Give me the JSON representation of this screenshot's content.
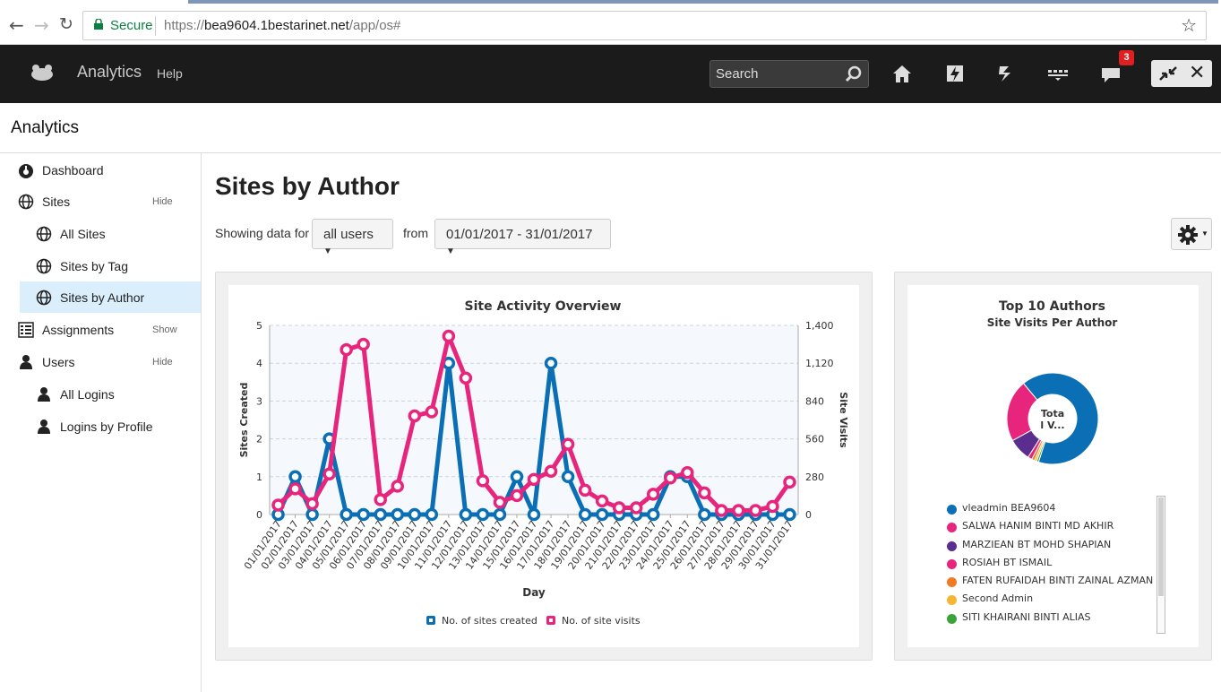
{
  "browser": {
    "secure_label": "Secure",
    "url_scheme": "https://",
    "url_host": "bea9604.1bestarinet.net",
    "url_path": "/app/os#"
  },
  "appbar": {
    "title": "Analytics",
    "help": "Help",
    "search_placeholder": "Search",
    "notification_count": "3"
  },
  "page": {
    "heading": "Analytics"
  },
  "sidebar": {
    "items": [
      {
        "label": "Dashboard",
        "icon": "dashboard-icon",
        "action": ""
      },
      {
        "label": "Sites",
        "icon": "globe-icon",
        "action": "Hide"
      },
      {
        "label": "All Sites",
        "icon": "globe-icon",
        "action": ""
      },
      {
        "label": "Sites by Tag",
        "icon": "globe-icon",
        "action": ""
      },
      {
        "label": "Sites by Author",
        "icon": "globe-icon",
        "action": ""
      },
      {
        "label": "Assignments",
        "icon": "list-icon",
        "action": "Show"
      },
      {
        "label": "Users",
        "icon": "user-icon",
        "action": "Hide"
      },
      {
        "label": "All Logins",
        "icon": "user-icon",
        "action": ""
      },
      {
        "label": "Logins by Profile",
        "icon": "user-icon",
        "action": ""
      }
    ]
  },
  "main": {
    "title": "Sites by Author",
    "showing_label": "Showing data for",
    "users_dropdown": "all users",
    "from_label": "from",
    "date_range": "01/01/2017 - 31/01/2017"
  },
  "colors": {
    "blue": "#0a6fb5",
    "pink": "#e8257c",
    "purple": "#5b2d8e",
    "orange": "#f07b22",
    "yellow": "#f5b731",
    "green": "#3aa43a"
  },
  "chart_data": [
    {
      "type": "line",
      "title": "Site Activity Overview",
      "xlabel": "Day",
      "ylabel": "Sites Created",
      "y2label": "Site Visits",
      "categories": [
        "01/01/2017",
        "02/01/2017",
        "03/01/2017",
        "04/01/2017",
        "05/01/2017",
        "06/01/2017",
        "07/01/2017",
        "08/01/2017",
        "09/01/2017",
        "10/01/2017",
        "11/01/2017",
        "12/01/2017",
        "13/01/2017",
        "14/01/2017",
        "15/01/2017",
        "16/01/2017",
        "17/01/2017",
        "18/01/2017",
        "19/01/2017",
        "20/01/2017",
        "21/01/2017",
        "22/01/2017",
        "23/01/2017",
        "24/01/2017",
        "25/01/2017",
        "26/01/2017",
        "27/01/2017",
        "28/01/2017",
        "29/01/2017",
        "30/01/2017",
        "31/01/2017"
      ],
      "ylim": [
        0,
        5
      ],
      "y2lim": [
        0,
        1400
      ],
      "yticks": [
        "0",
        "1",
        "2",
        "3",
        "4",
        "5"
      ],
      "y2ticks": [
        "0",
        "280",
        "560",
        "840",
        "1,120",
        "1,400"
      ],
      "series": [
        {
          "name": "No. of sites created",
          "axis": "left",
          "values": [
            0,
            1,
            0,
            2,
            0,
            0,
            0,
            0,
            0,
            0,
            4,
            0,
            0,
            0,
            1,
            0,
            4,
            1,
            0,
            0,
            0,
            0,
            0,
            1,
            1,
            0,
            0,
            0,
            0,
            0,
            0
          ]
        },
        {
          "name": "No. of site visits",
          "axis": "right",
          "values": [
            70,
            190,
            80,
            300,
            1220,
            1260,
            110,
            210,
            730,
            760,
            1320,
            1010,
            250,
            90,
            140,
            260,
            320,
            520,
            180,
            100,
            50,
            50,
            150,
            270,
            310,
            160,
            30,
            30,
            30,
            60,
            240
          ]
        }
      ],
      "grid": true,
      "legend": "bottom"
    },
    {
      "type": "pie",
      "title": "Top 10 Authors",
      "subtitle": "Site Visits Per Author",
      "center_label": "Tota l V...",
      "labels": [
        "vleadmin BEA9604",
        "SALWA HANIM BINTI MD AKHIR",
        "MARZIEAN BT MOHD SHAPIAN",
        "ROSIAH BT ISMAIL",
        "FATEN RUFAIDAH BINTI ZAINAL AZMAN",
        "Second Admin",
        "SITI KHAIRANI BINTI ALIAS"
      ],
      "values": [
        66,
        22,
        8,
        1.5,
        1,
        0.8,
        0.7
      ],
      "legend": "bottom"
    }
  ]
}
